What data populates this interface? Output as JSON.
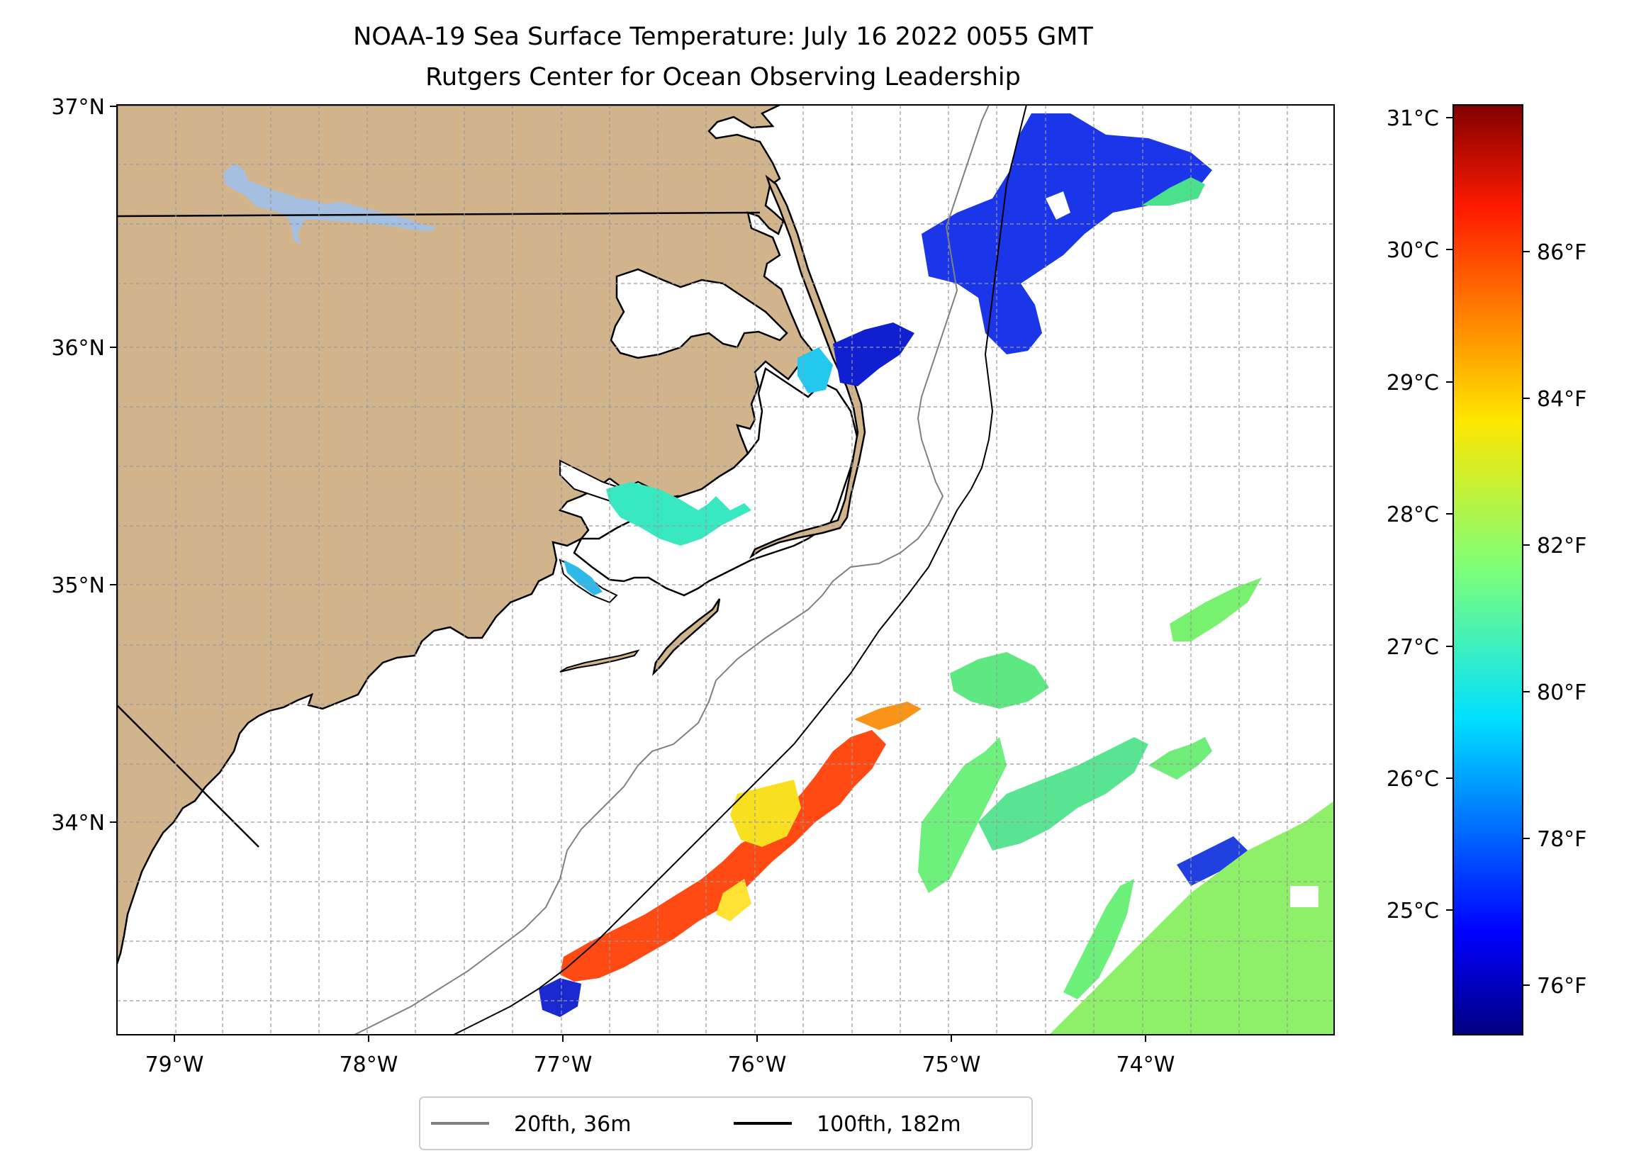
{
  "map": {
    "title_line1": "NOAA-19 Sea Surface Temperature: July 16 2022 0055 GMT",
    "title_line2": "Rutgers Center for Ocean Observing Leadership",
    "lon_labels": [
      "79°W",
      "78°W",
      "77°W",
      "76°W",
      "75°W",
      "74°W"
    ],
    "lat_labels": [
      "37°N",
      "36°N",
      "35°N",
      "34°N"
    ],
    "land_color": "#d2b48c",
    "lake_color": "#a5bfe0",
    "contour_20fth_color": "#808080",
    "contour_100fth_color": "#000000"
  },
  "colorbar": {
    "celsius_labels": [
      "31°C",
      "30°C",
      "29°C",
      "28°C",
      "27°C",
      "26°C",
      "25°C"
    ],
    "fahrenheit_labels": [
      "86°F",
      "84°F",
      "82°F",
      "80°F",
      "78°F",
      "76°F"
    ],
    "colormap": "jet"
  },
  "legend": {
    "items": [
      {
        "label": "20fth, 36m",
        "color": "#808080"
      },
      {
        "label": "100fth, 182m",
        "color": "#000000"
      }
    ]
  }
}
